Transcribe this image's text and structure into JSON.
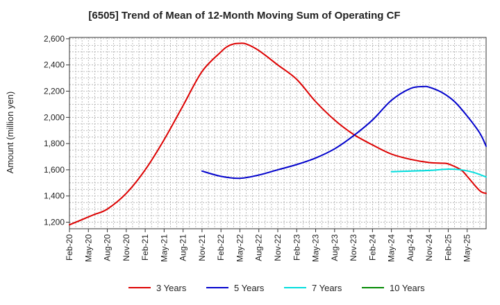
{
  "chart_data": {
    "type": "line",
    "title": "[6505]  Trend of Mean of 12-Month Moving Sum of Operating CF",
    "xlabel": "",
    "ylabel": "Amount (million yen)",
    "ylim": [
      1150,
      2610
    ],
    "yticks": [
      1200,
      1400,
      1600,
      1800,
      2000,
      2200,
      2400,
      2600
    ],
    "ytick_labels": [
      "1,200",
      "1,400",
      "1,600",
      "1,800",
      "2,000",
      "2,200",
      "2,400",
      "2,600"
    ],
    "xtick_labels": [
      "Feb-20",
      "May-20",
      "Aug-20",
      "Nov-20",
      "Feb-21",
      "May-21",
      "Aug-21",
      "Nov-21",
      "Feb-22",
      "May-22",
      "Aug-22",
      "Nov-22",
      "Feb-23",
      "May-23",
      "Aug-23",
      "Nov-23",
      "Feb-24",
      "May-24",
      "Aug-24",
      "Nov-24",
      "Feb-25",
      "May-25"
    ],
    "x_unit": "months since Feb-20",
    "xlim": [
      0,
      63
    ],
    "grid": true,
    "legend_position": "bottom",
    "series": [
      {
        "name": "3 Years",
        "color": "#dd0000",
        "points": [
          [
            0,
            1180
          ],
          [
            2,
            1220
          ],
          [
            3,
            1240
          ],
          [
            4,
            1260
          ],
          [
            6,
            1300
          ],
          [
            9,
            1420
          ],
          [
            12,
            1600
          ],
          [
            15,
            1830
          ],
          [
            18,
            2090
          ],
          [
            21,
            2350
          ],
          [
            24,
            2500
          ],
          [
            25,
            2540
          ],
          [
            26,
            2560
          ],
          [
            27,
            2565
          ],
          [
            28,
            2560
          ],
          [
            30,
            2510
          ],
          [
            33,
            2400
          ],
          [
            36,
            2290
          ],
          [
            39,
            2120
          ],
          [
            42,
            1980
          ],
          [
            45,
            1870
          ],
          [
            48,
            1790
          ],
          [
            51,
            1720
          ],
          [
            54,
            1680
          ],
          [
            57,
            1655
          ],
          [
            59,
            1650
          ],
          [
            60,
            1645
          ],
          [
            62,
            1600
          ],
          [
            63,
            1550
          ],
          [
            65,
            1440
          ],
          [
            66,
            1420
          ]
        ]
      },
      {
        "name": "5 Years",
        "color": "#0000cc",
        "points": [
          [
            21,
            1590
          ],
          [
            24,
            1550
          ],
          [
            27,
            1535
          ],
          [
            30,
            1560
          ],
          [
            33,
            1600
          ],
          [
            36,
            1640
          ],
          [
            39,
            1690
          ],
          [
            42,
            1760
          ],
          [
            45,
            1860
          ],
          [
            48,
            1980
          ],
          [
            51,
            2130
          ],
          [
            54,
            2220
          ],
          [
            56,
            2235
          ],
          [
            57,
            2230
          ],
          [
            59,
            2190
          ],
          [
            61,
            2120
          ],
          [
            63,
            2010
          ],
          [
            65,
            1880
          ],
          [
            66,
            1780
          ]
        ]
      },
      {
        "name": "7 Years",
        "color": "#00dddd",
        "points": [
          [
            51,
            1585
          ],
          [
            54,
            1590
          ],
          [
            57,
            1595
          ],
          [
            60,
            1605
          ],
          [
            62,
            1600
          ],
          [
            64,
            1580
          ],
          [
            66,
            1545
          ]
        ]
      },
      {
        "name": "10 Years",
        "color": "#008800",
        "points": []
      }
    ]
  }
}
